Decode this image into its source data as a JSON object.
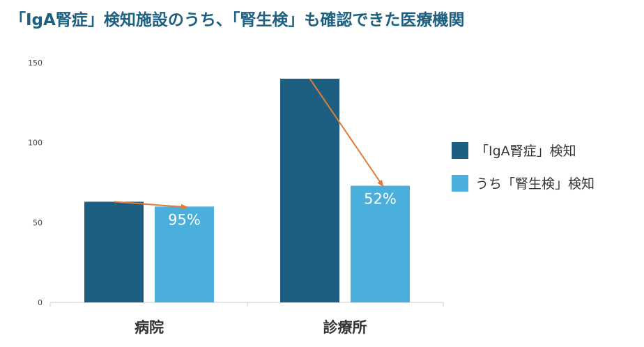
{
  "chart_data": {
    "type": "bar",
    "title": "「IgA腎症」検知施設のうち、「腎生検」も確認できた医療機関",
    "xlabel": "",
    "ylabel": "",
    "categories": [
      "病院",
      "診療所"
    ],
    "series": [
      {
        "name": "「IgA腎症」検知",
        "values": [
          63,
          140
        ],
        "color": "#1c5f80"
      },
      {
        "name": "うち「腎生検」検知",
        "values": [
          60,
          73
        ],
        "color": "#4aafdc"
      }
    ],
    "data_labels": [
      "95%",
      "52%"
    ],
    "ylim": [
      0,
      150
    ],
    "yticks": [
      0,
      50,
      100,
      150
    ],
    "grid": false,
    "legend": "right",
    "title_color": "#1c5f80",
    "arrow_color": "#e07b39"
  }
}
